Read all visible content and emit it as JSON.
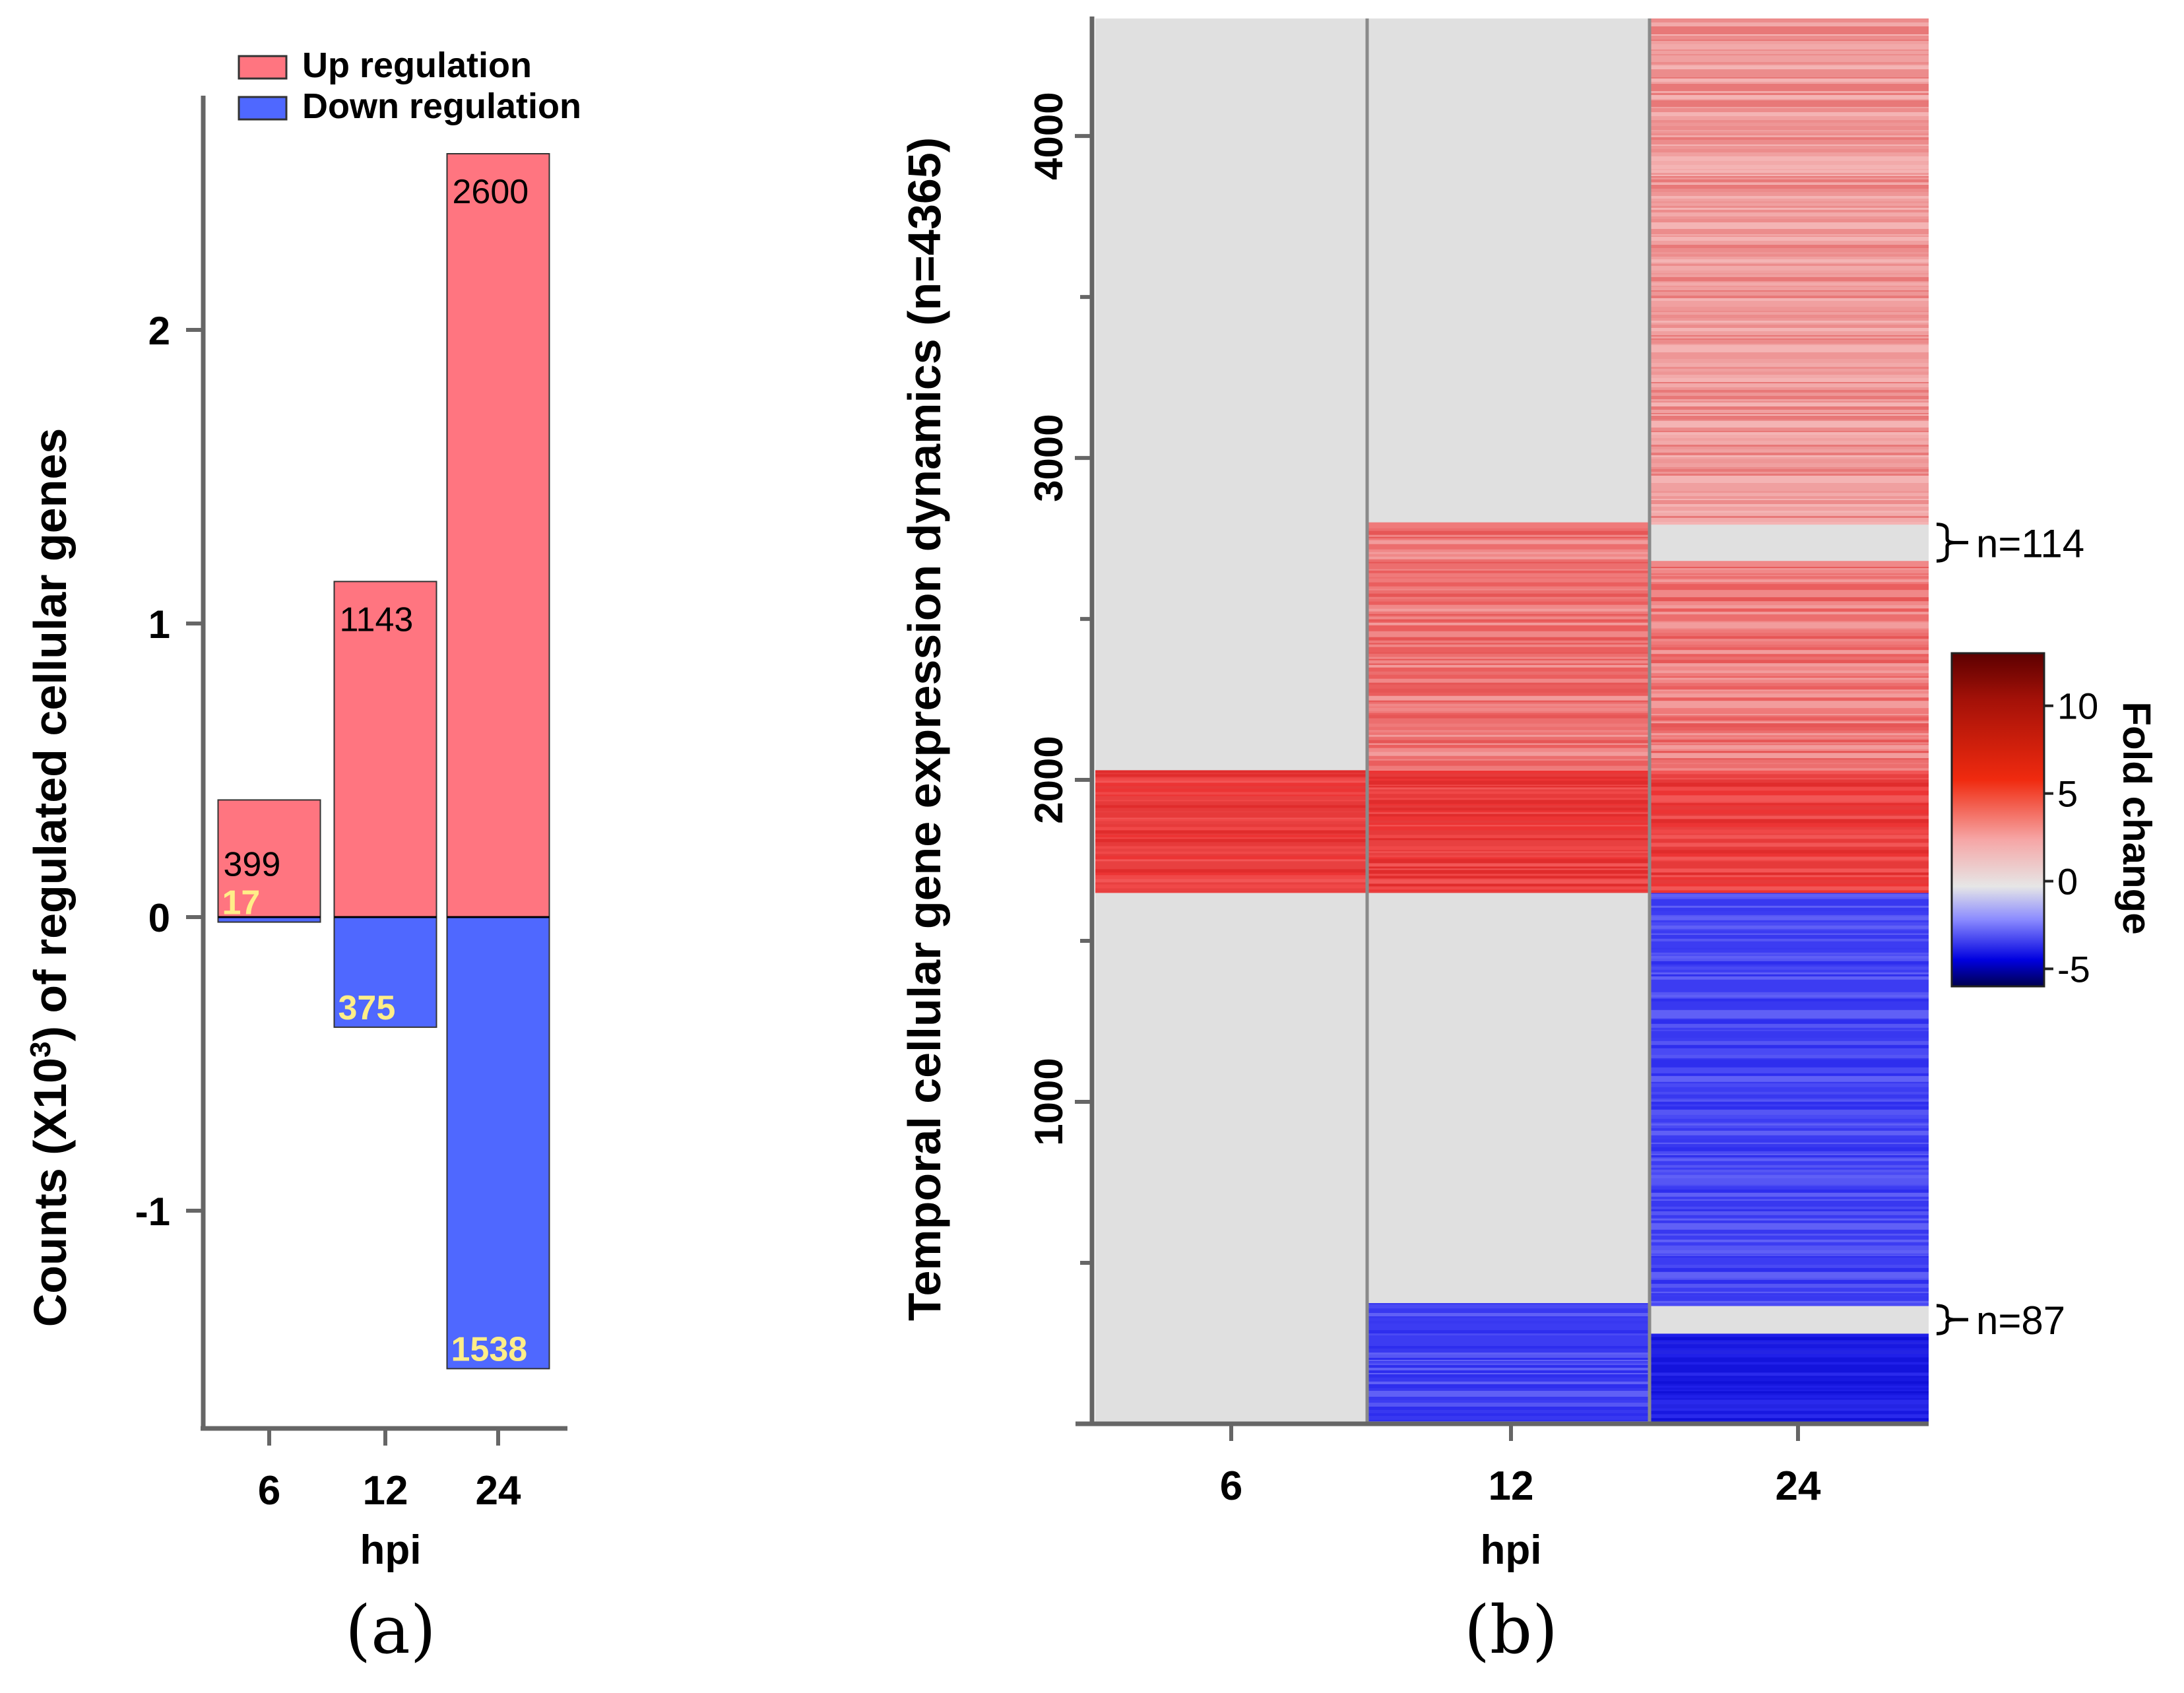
{
  "chart_data": [
    {
      "panel_label": "(a)",
      "type": "bar",
      "ylabel_main": "Counts (X10",
      "ylabel_sup": "3",
      "ylabel_rest": ") of regulated  cellular genes",
      "xlabel": "hpi",
      "categories": [
        "6",
        "12",
        "24"
      ],
      "series": [
        {
          "name": "Up regulation",
          "color": "#ff7580",
          "values": [
            399,
            1143,
            2600
          ],
          "labels": [
            "399",
            "1143",
            "2600"
          ]
        },
        {
          "name": "Down regulation",
          "color": "#4f68ff",
          "values": [
            -17,
            -375,
            -1538
          ],
          "labels": [
            "17",
            "375",
            "1538"
          ],
          "label_color": "#ffee88"
        }
      ],
      "yticks": [
        -1,
        0,
        1,
        2
      ],
      "ytick_labels": [
        "-1",
        "0",
        "1",
        "2"
      ],
      "ylim": [
        -1.75,
        2.75
      ],
      "legend_position": "top"
    },
    {
      "panel_label": "(b)",
      "type": "heatmap",
      "ylabel": "Temporal cellular gene expression dynamics (n=4365)",
      "xlabel": "hpi",
      "columns": [
        "6",
        "12",
        "24"
      ],
      "ylim": [
        0,
        4365
      ],
      "yticks": [
        1000,
        2000,
        3000,
        4000
      ],
      "ytick_labels": [
        "1000",
        "2000",
        "3000",
        "4000"
      ],
      "blocks": [
        {
          "column": 0,
          "from": 1650,
          "to": 2030,
          "kind": "up-strong"
        },
        {
          "column": 1,
          "from": 0,
          "to": 375,
          "kind": "down"
        },
        {
          "column": 1,
          "from": 1650,
          "to": 2030,
          "kind": "up-strong"
        },
        {
          "column": 1,
          "from": 2030,
          "to": 2800,
          "kind": "up"
        },
        {
          "column": 2,
          "from": 0,
          "to": 280,
          "kind": "down-strong"
        },
        {
          "column": 2,
          "from": 367,
          "to": 1650,
          "kind": "down"
        },
        {
          "column": 2,
          "from": 1650,
          "to": 2030,
          "kind": "up-strong"
        },
        {
          "column": 2,
          "from": 2030,
          "to": 2680,
          "kind": "up"
        },
        {
          "column": 2,
          "from": 2794,
          "to": 4365,
          "kind": "up-light"
        }
      ],
      "annotations": [
        {
          "label": "n=114",
          "from": 2680,
          "to": 2794
        },
        {
          "label": "n=87",
          "from": 280,
          "to": 367
        }
      ],
      "colorbar": {
        "title": "Fold change",
        "range": [
          -6,
          13
        ],
        "ticks": [
          10,
          5,
          0,
          -5
        ],
        "tick_labels": [
          "10",
          "5",
          "0",
          "-5"
        ]
      }
    }
  ]
}
